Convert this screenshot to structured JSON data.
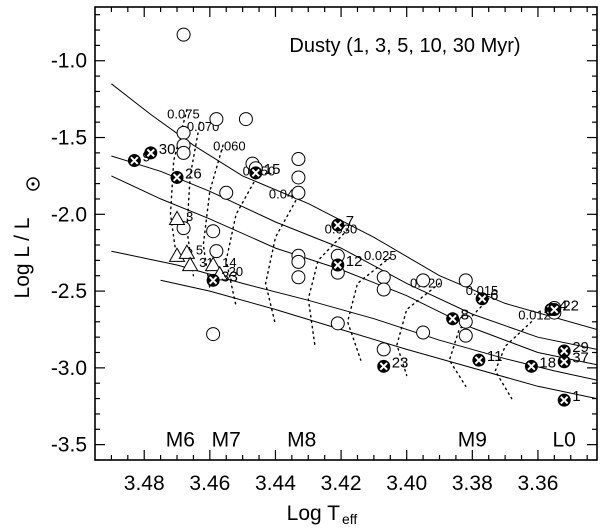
{
  "chart_data": {
    "type": "scatter",
    "title": "Dusty (1, 3, 5, 10, 30 Myr)",
    "xlabel_main": "Log T",
    "xlabel_sub": "eff",
    "ylabel_main": "Log L / L",
    "xlim": [
      3.495,
      3.342
    ],
    "ylim": [
      -3.6,
      -0.65
    ],
    "x_ticks": [
      3.48,
      3.46,
      3.44,
      3.42,
      3.4,
      3.38,
      3.36
    ],
    "x_tick_labels": [
      "3.48",
      "3.46",
      "3.44",
      "3.42",
      "3.40",
      "3.38",
      "3.36"
    ],
    "y_ticks": [
      -1.0,
      -1.5,
      -2.0,
      -2.5,
      -3.0,
      -3.5
    ],
    "y_tick_labels": [
      "-1.0",
      "-1.5",
      "-2.0",
      "-2.5",
      "-3.0",
      "-3.5"
    ],
    "spectral_types": [
      {
        "label": "M6",
        "x": 3.469,
        "y": -3.46
      },
      {
        "label": "M7",
        "x": 3.455,
        "y": -3.46
      },
      {
        "label": "M8",
        "x": 3.432,
        "y": -3.46
      },
      {
        "label": "M9",
        "x": 3.38,
        "y": -3.46
      },
      {
        "label": "L0",
        "x": 3.352,
        "y": -3.46
      }
    ],
    "isochrones": [
      {
        "points": [
          [
            3.49,
            -1.15
          ],
          [
            3.478,
            -1.35
          ],
          [
            3.465,
            -1.55
          ],
          [
            3.45,
            -1.75
          ],
          [
            3.43,
            -1.93
          ],
          [
            3.41,
            -2.15
          ],
          [
            3.39,
            -2.4
          ],
          [
            3.37,
            -2.58
          ],
          [
            3.342,
            -2.75
          ]
        ]
      },
      {
        "points": [
          [
            3.49,
            -1.62
          ],
          [
            3.475,
            -1.72
          ],
          [
            3.46,
            -1.85
          ],
          [
            3.44,
            -2.05
          ],
          [
            3.42,
            -2.22
          ],
          [
            3.4,
            -2.45
          ],
          [
            3.38,
            -2.65
          ],
          [
            3.36,
            -2.8
          ],
          [
            3.342,
            -2.88
          ]
        ]
      },
      {
        "points": [
          [
            3.49,
            -1.75
          ],
          [
            3.475,
            -1.9
          ],
          [
            3.46,
            -2.03
          ],
          [
            3.44,
            -2.22
          ],
          [
            3.42,
            -2.36
          ],
          [
            3.4,
            -2.53
          ],
          [
            3.38,
            -2.74
          ],
          [
            3.36,
            -2.9
          ],
          [
            3.342,
            -2.98
          ]
        ]
      },
      {
        "points": [
          [
            3.49,
            -2.24
          ],
          [
            3.47,
            -2.33
          ],
          [
            3.45,
            -2.45
          ],
          [
            3.43,
            -2.56
          ],
          [
            3.41,
            -2.68
          ],
          [
            3.39,
            -2.82
          ],
          [
            3.37,
            -2.94
          ],
          [
            3.355,
            -3.02
          ],
          [
            3.342,
            -3.08
          ]
        ]
      },
      {
        "points": [
          [
            3.475,
            -2.43
          ],
          [
            3.46,
            -2.5
          ],
          [
            3.44,
            -2.62
          ],
          [
            3.42,
            -2.75
          ],
          [
            3.4,
            -2.88
          ],
          [
            3.38,
            -3.0
          ],
          [
            3.36,
            -3.12
          ],
          [
            3.342,
            -3.2
          ]
        ]
      }
    ],
    "mass_tracks": [
      {
        "label": "0.075",
        "points": [
          [
            3.467,
            -1.32
          ],
          [
            3.471,
            -1.65
          ],
          [
            3.472,
            -2.0
          ],
          [
            3.47,
            -2.3
          ]
        ],
        "label_at": [
          3.473,
          -1.35
        ]
      },
      {
        "label": "0.070",
        "points": [
          [
            3.463,
            -1.4
          ],
          [
            3.466,
            -1.75
          ],
          [
            3.467,
            -2.1
          ],
          [
            3.465,
            -2.4
          ]
        ],
        "label_at": [
          3.467,
          -1.43
        ]
      },
      {
        "label": "0.060",
        "points": [
          [
            3.456,
            -1.55
          ],
          [
            3.46,
            -1.85
          ],
          [
            3.462,
            -2.2
          ],
          [
            3.46,
            -2.48
          ]
        ],
        "label_at": [
          3.459,
          -1.56
        ]
      },
      {
        "label": "0.050",
        "points": [
          [
            3.445,
            -1.73
          ],
          [
            3.452,
            -2.0
          ],
          [
            3.455,
            -2.3
          ],
          [
            3.452,
            -2.6
          ]
        ],
        "label_at": [
          3.45,
          -1.72
        ]
      },
      {
        "label": "0.040",
        "points": [
          [
            3.433,
            -1.88
          ],
          [
            3.44,
            -2.15
          ],
          [
            3.443,
            -2.45
          ],
          [
            3.44,
            -2.72
          ]
        ],
        "label_at": [
          3.442,
          -1.87
        ]
      },
      {
        "label": "0.030",
        "points": [
          [
            3.418,
            -2.1
          ],
          [
            3.427,
            -2.3
          ],
          [
            3.43,
            -2.55
          ],
          [
            3.428,
            -2.85
          ]
        ],
        "label_at": [
          3.425,
          -2.1
        ]
      },
      {
        "label": "0.025",
        "points": [
          [
            3.405,
            -2.28
          ],
          [
            3.415,
            -2.45
          ],
          [
            3.418,
            -2.7
          ],
          [
            3.414,
            -2.95
          ]
        ],
        "label_at": [
          3.413,
          -2.27
        ]
      },
      {
        "label": "0.020",
        "points": [
          [
            3.39,
            -2.45
          ],
          [
            3.4,
            -2.62
          ],
          [
            3.403,
            -2.85
          ],
          [
            3.4,
            -3.05
          ]
        ],
        "label_at": [
          3.399,
          -2.45
        ]
      },
      {
        "label": "0.015",
        "points": [
          [
            3.375,
            -2.55
          ],
          [
            3.384,
            -2.75
          ],
          [
            3.387,
            -2.95
          ],
          [
            3.382,
            -3.12
          ]
        ],
        "label_at": [
          3.382,
          -2.5
        ]
      },
      {
        "label": "0.012",
        "points": [
          [
            3.362,
            -2.7
          ],
          [
            3.37,
            -2.86
          ],
          [
            3.373,
            -3.02
          ],
          [
            3.368,
            -3.2
          ]
        ],
        "label_at": [
          3.366,
          -2.66
        ]
      }
    ],
    "open_circles": [
      [
        3.468,
        -0.83
      ],
      [
        3.468,
        -1.47
      ],
      [
        3.468,
        -1.55
      ],
      [
        3.468,
        -1.6
      ],
      [
        3.458,
        -1.38
      ],
      [
        3.449,
        -1.38
      ],
      [
        3.447,
        -1.67
      ],
      [
        3.446,
        -1.7
      ],
      [
        3.455,
        -1.86
      ],
      [
        3.433,
        -1.64
      ],
      [
        3.433,
        -1.76
      ],
      [
        3.433,
        -1.86
      ],
      [
        3.433,
        -2.27
      ],
      [
        3.433,
        -2.31
      ],
      [
        3.433,
        -2.41
      ],
      [
        3.421,
        -2.27
      ],
      [
        3.421,
        -2.38
      ],
      [
        3.421,
        -2.71
      ],
      [
        3.407,
        -2.41
      ],
      [
        3.407,
        -2.49
      ],
      [
        3.407,
        -2.88
      ],
      [
        3.395,
        -2.43
      ],
      [
        3.395,
        -2.77
      ],
      [
        3.382,
        -2.43
      ],
      [
        3.382,
        -2.7
      ],
      [
        3.382,
        -2.79
      ],
      [
        3.468,
        -2.09
      ],
      [
        3.459,
        -2.11
      ],
      [
        3.458,
        -2.24
      ],
      [
        3.459,
        -2.78
      ],
      [
        3.355,
        -2.64
      ],
      [
        3.355,
        -2.61
      ]
    ],
    "triangles": [
      {
        "x": 3.47,
        "y": -2.03,
        "label": "3"
      },
      {
        "x": 3.47,
        "y": -2.27,
        "label": "2"
      },
      {
        "x": 3.467,
        "y": -2.25,
        "label": "5"
      },
      {
        "x": 3.466,
        "y": -2.33,
        "label": "31"
      },
      {
        "x": 3.459,
        "y": -2.33,
        "label": "14"
      },
      {
        "x": 3.457,
        "y": -2.39,
        "label": "20"
      }
    ],
    "filled_points": [
      {
        "x": 3.483,
        "y": -1.65,
        "label": "9"
      },
      {
        "x": 3.478,
        "y": -1.6,
        "label": "30"
      },
      {
        "x": 3.47,
        "y": -1.76,
        "label": "26"
      },
      {
        "x": 3.446,
        "y": -1.73,
        "label": "15"
      },
      {
        "x": 3.421,
        "y": -2.07,
        "label": "7"
      },
      {
        "x": 3.421,
        "y": -2.33,
        "label": "12"
      },
      {
        "x": 3.407,
        "y": -2.99,
        "label": "23"
      },
      {
        "x": 3.459,
        "y": -2.43,
        "label": "33"
      },
      {
        "x": 3.386,
        "y": -2.68,
        "label": "8"
      },
      {
        "x": 3.377,
        "y": -2.55,
        "label": "6"
      },
      {
        "x": 3.378,
        "y": -2.95,
        "label": "11"
      },
      {
        "x": 3.362,
        "y": -2.99,
        "label": "18"
      },
      {
        "x": 3.356,
        "y": -2.62,
        "label": "4"
      },
      {
        "x": 3.355,
        "y": -2.62,
        "label": "22"
      },
      {
        "x": 3.352,
        "y": -2.89,
        "label": "29"
      },
      {
        "x": 3.352,
        "y": -2.96,
        "label": "37"
      },
      {
        "x": 3.352,
        "y": -3.21,
        "label": "1"
      }
    ],
    "colors": {
      "axis": "#000000",
      "point_label": "#e01b1b",
      "mass_label": "#000000"
    }
  }
}
